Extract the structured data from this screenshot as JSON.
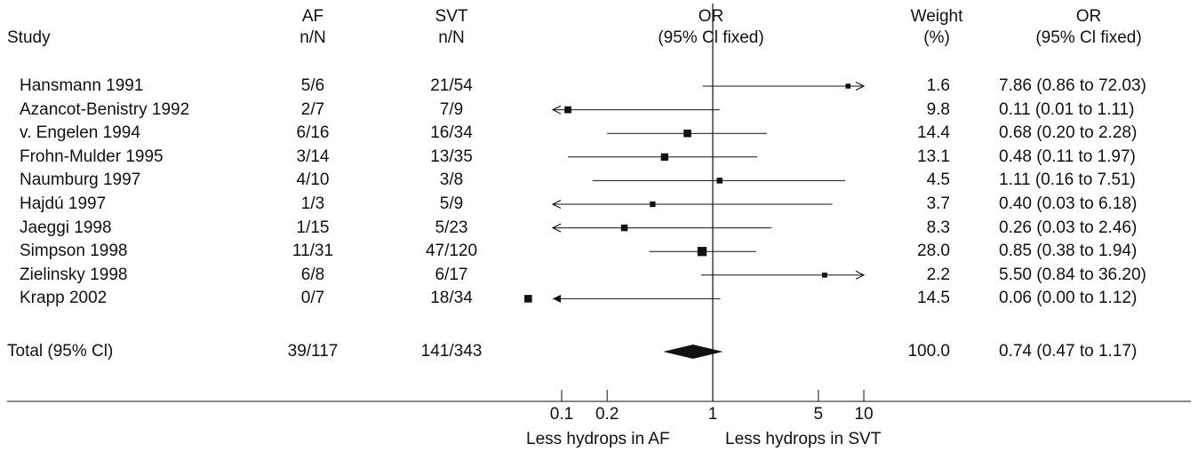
{
  "chart_data": {
    "type": "forest",
    "headers": {
      "study": "Study",
      "af": [
        "AF",
        "n/N"
      ],
      "svt": [
        "SVT",
        "n/N"
      ],
      "or_plot": [
        "OR",
        "(95% Cl fixed)"
      ],
      "weight": [
        "Weight",
        "(%)"
      ],
      "or_text": [
        "OR",
        "(95% Cl fixed)"
      ]
    },
    "scale": "log",
    "xlim": [
      0.04,
      20
    ],
    "x_ticks": [
      0.1,
      0.2,
      1,
      5,
      10
    ],
    "x_tick_labels": [
      "0.1",
      "0.2",
      "1",
      "5",
      "10"
    ],
    "x_axis_captions": [
      "Less hydrops in AF",
      "Less hydrops in SVT"
    ],
    "rows": [
      {
        "study": "Hansmann 1991",
        "af": "5/6",
        "svt": "21/54",
        "or": 7.86,
        "lo": 0.86,
        "hi": 72.03,
        "weight": "1.6",
        "or_text": "7.86 (0.86 to 72.03)"
      },
      {
        "study": "Azancot-Benistry 1992",
        "af": "2/7",
        "svt": "7/9",
        "or": 0.11,
        "lo": 0.01,
        "hi": 1.11,
        "weight": "9.8",
        "or_text": "0.11 (0.01 to 1.11)"
      },
      {
        "study": "v. Engelen 1994",
        "af": "6/16",
        "svt": "16/34",
        "or": 0.68,
        "lo": 0.2,
        "hi": 2.28,
        "weight": "14.4",
        "or_text": "0.68 (0.20 to 2.28)"
      },
      {
        "study": "Frohn-Mulder 1995",
        "af": "3/14",
        "svt": "13/35",
        "or": 0.48,
        "lo": 0.11,
        "hi": 1.97,
        "weight": "13.1",
        "or_text": "0.48 (0.11 to 1.97)"
      },
      {
        "study": "Naumburg 1997",
        "af": "4/10",
        "svt": "3/8",
        "or": 1.11,
        "lo": 0.16,
        "hi": 7.51,
        "weight": "4.5",
        "or_text": "1.11 (0.16 to 7.51)"
      },
      {
        "study": "Hajdú 1997",
        "af": "1/3",
        "svt": "5/9",
        "or": 0.4,
        "lo": 0.03,
        "hi": 6.18,
        "weight": "3.7",
        "or_text": "0.40 (0.03 to 6.18)"
      },
      {
        "study": "Jaeggi 1998",
        "af": "1/15",
        "svt": "5/23",
        "or": 0.26,
        "lo": 0.03,
        "hi": 2.46,
        "weight": "8.3",
        "or_text": "0.26 (0.03 to 2.46)"
      },
      {
        "study": "Simpson 1998",
        "af": "11/31",
        "svt": "47/120",
        "or": 0.85,
        "lo": 0.38,
        "hi": 1.94,
        "weight": "28.0",
        "or_text": "0.85 (0.38 to 1.94)"
      },
      {
        "study": "Zielinsky 1998",
        "af": "6/8",
        "svt": "6/17",
        "or": 5.5,
        "lo": 0.84,
        "hi": 36.2,
        "weight": "2.2",
        "or_text": "5.50 (0.84 to 36.20)"
      },
      {
        "study": "Krapp 2002",
        "af": "0/7",
        "svt": "18/34",
        "or": 0.06,
        "lo": 0.0,
        "hi": 1.12,
        "weight": "14.5",
        "or_text": "0.06 (0.00 to 1.12)"
      }
    ],
    "total": {
      "study": "Total (95% Cl)",
      "af": "39/117",
      "svt": "141/343",
      "or": 0.74,
      "lo": 0.47,
      "hi": 1.17,
      "weight": "100.0",
      "or_text": "0.74 (0.47 to 1.17)"
    }
  }
}
